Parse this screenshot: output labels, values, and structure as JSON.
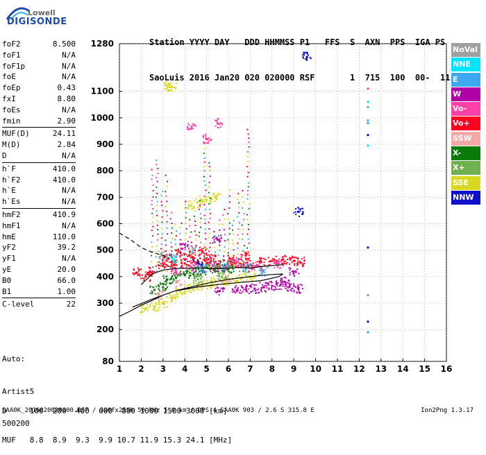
{
  "logo": {
    "top": "Lowell",
    "main": "DIGISONDE"
  },
  "header": {
    "line1": "Station YYYY DAY   DDD HHMMSS P1   FFS  S  AXN  PPS  IGA PS",
    "line2": "SaoLuis 2016 Jan20 020 020000 RSF       1  715  100  00-  11"
  },
  "params": [
    [
      {
        "label": "foF2",
        "value": "8.500"
      },
      {
        "label": "foF1",
        "value": "N/A"
      },
      {
        "label": "foF1p",
        "value": "N/A"
      },
      {
        "label": "foE",
        "value": "N/A"
      },
      {
        "label": "foEp",
        "value": "0.43"
      },
      {
        "label": "fxI",
        "value": "8.80"
      },
      {
        "label": "foEs",
        "value": "N/A"
      },
      {
        "label": "fmin",
        "value": "2.90"
      }
    ],
    [
      {
        "label": "MUF(D)",
        "value": "24.11"
      },
      {
        "label": "M(D)",
        "value": "2.84"
      },
      {
        "label": "D",
        "value": "N/A"
      }
    ],
    [
      {
        "label": "h`F",
        "value": "410.0"
      },
      {
        "label": "h`F2",
        "value": "410.0"
      },
      {
        "label": "h`E",
        "value": "N/A"
      },
      {
        "label": "h`Es",
        "value": "N/A"
      }
    ],
    [
      {
        "label": "hmF2",
        "value": "410.9"
      },
      {
        "label": "hmF1",
        "value": "N/A"
      },
      {
        "label": "hmE",
        "value": "110.0"
      },
      {
        "label": "yF2",
        "value": "39.2"
      },
      {
        "label": "yF1",
        "value": "N/A"
      },
      {
        "label": "yE",
        "value": "20.0"
      },
      {
        "label": "B0",
        "value": "66.0"
      },
      {
        "label": "B1",
        "value": "1.00"
      }
    ],
    [
      {
        "label": "C-level",
        "value": "22"
      }
    ]
  ],
  "auto": {
    "line1": "Auto:",
    "line2": "Artist5",
    "line3": "500200"
  },
  "dmuf": {
    "d_line": "D     100  200  400  600  800 1000 1500 3000 [km]",
    "muf_line": "MUF   8.8  8.9  9.3  9.9 10.7 11.9 15.3 24.1 [MHz]"
  },
  "footer": {
    "left": "SAA0K_2016020020000.RSF / 300fx256h 50 kHz 5.0 km / DPS-4 SAA0K 903 / 2.6 S 315.8 E",
    "right": "Ion2Png 1.3.17"
  },
  "legend": [
    {
      "label": "NoVal",
      "color": "#a0a0a0"
    },
    {
      "label": "NNE",
      "color": "#00e5ff"
    },
    {
      "label": "E",
      "color": "#3ca8f0"
    },
    {
      "label": "W",
      "color": "#b000a8"
    },
    {
      "label": "Vo-",
      "color": "#ff3fa8"
    },
    {
      "label": "Vo+",
      "color": "#ff0020"
    },
    {
      "label": "SSW",
      "color": "#f5a8a8"
    },
    {
      "label": "X-",
      "color": "#0a7a0a"
    },
    {
      "label": "X+",
      "color": "#70b050"
    },
    {
      "label": "SSE",
      "color": "#d8d820"
    },
    {
      "label": "NNW",
      "color": "#1010c8"
    }
  ],
  "chart_data": {
    "type": "scatter",
    "xlabel": "",
    "ylabel": "",
    "xlim": [
      1,
      16
    ],
    "ylim": [
      80,
      1280
    ],
    "x_ticks": [
      1,
      2,
      3,
      4,
      5,
      6,
      7,
      8,
      9,
      10,
      11,
      12,
      13,
      14,
      15,
      16
    ],
    "y_ticks": [
      80,
      200,
      300,
      400,
      500,
      600,
      700,
      800,
      900,
      1000,
      1100,
      1280
    ],
    "grid": true,
    "series": [
      {
        "name": "Vo+",
        "color": "#ff0020",
        "points": [
          [
            1.8,
            415
          ],
          [
            2.4,
            420
          ],
          [
            3.0,
            440
          ],
          [
            3.5,
            445
          ],
          [
            4.0,
            450
          ],
          [
            4.5,
            455
          ],
          [
            5.0,
            450
          ],
          [
            5.5,
            445
          ],
          [
            6.0,
            445
          ],
          [
            6.5,
            450
          ],
          [
            7.0,
            445
          ],
          [
            7.5,
            455
          ],
          [
            8.0,
            460
          ],
          [
            8.5,
            465
          ],
          [
            9.0,
            460
          ],
          [
            9.3,
            455
          ],
          [
            2.2,
            400
          ],
          [
            3.2,
            470
          ],
          [
            4.2,
            480
          ],
          [
            5.2,
            470
          ],
          [
            6.2,
            465
          ],
          [
            6.8,
            480
          ],
          [
            3.8,
            490
          ],
          [
            4.8,
            495
          ]
        ]
      },
      {
        "name": "SSE",
        "color": "#d8d820",
        "points": [
          [
            2.2,
            280
          ],
          [
            2.6,
            285
          ],
          [
            3.0,
            300
          ],
          [
            3.4,
            320
          ],
          [
            3.8,
            340
          ],
          [
            4.2,
            355
          ],
          [
            4.6,
            365
          ],
          [
            5.0,
            370
          ],
          [
            5.4,
            380
          ],
          [
            5.8,
            385
          ],
          [
            6.2,
            390
          ],
          [
            6.6,
            395
          ],
          [
            7.0,
            400
          ],
          [
            4.2,
            670
          ],
          [
            4.6,
            680
          ],
          [
            5.0,
            690
          ],
          [
            5.4,
            700
          ],
          [
            3.2,
            1120
          ],
          [
            3.4,
            1118
          ]
        ]
      },
      {
        "name": "W",
        "color": "#b000a8",
        "points": [
          [
            7.2,
            355
          ],
          [
            7.6,
            360
          ],
          [
            8.0,
            365
          ],
          [
            8.4,
            370
          ],
          [
            8.8,
            362
          ],
          [
            9.2,
            355
          ],
          [
            6.4,
            350
          ],
          [
            6.8,
            352
          ],
          [
            5.6,
            345
          ],
          [
            9.0,
            420
          ],
          [
            8.6,
            380
          ],
          [
            5.5,
            540
          ],
          [
            4.0,
            520
          ]
        ]
      },
      {
        "name": "X-",
        "color": "#0a7a0a",
        "points": [
          [
            3.2,
            390
          ],
          [
            3.6,
            395
          ],
          [
            4.0,
            405
          ],
          [
            4.4,
            412
          ],
          [
            4.8,
            420
          ],
          [
            5.2,
            430
          ],
          [
            5.6,
            435
          ],
          [
            6.0,
            430
          ],
          [
            2.6,
            350
          ],
          [
            3.0,
            360
          ]
        ]
      },
      {
        "name": "NNW",
        "color": "#1010c8",
        "points": [
          [
            9.6,
            1230
          ],
          [
            12.4,
            935
          ],
          [
            12.4,
            510
          ],
          [
            12.4,
            230
          ],
          [
            9.2,
            645
          ],
          [
            4.6,
            450
          ]
        ]
      },
      {
        "name": "E",
        "color": "#3ca8f0",
        "points": [
          [
            12.4,
            1040
          ],
          [
            12.4,
            990
          ],
          [
            12.4,
            980
          ],
          [
            12.4,
            190
          ],
          [
            4.8,
            430
          ],
          [
            5.8,
            440
          ],
          [
            6.8,
            430
          ],
          [
            7.6,
            420
          ]
        ]
      },
      {
        "name": "NNE",
        "color": "#00e5ff",
        "points": [
          [
            12.4,
            1060
          ],
          [
            12.4,
            895
          ],
          [
            3.4,
            470
          ]
        ]
      },
      {
        "name": "Vo-",
        "color": "#ff3fa8",
        "points": [
          [
            12.4,
            1110
          ],
          [
            3.6,
            420
          ],
          [
            4.3,
            435
          ],
          [
            5.3,
            440
          ],
          [
            6.3,
            455
          ],
          [
            7.3,
            440
          ],
          [
            8.3,
            450
          ],
          [
            4.3,
            960
          ],
          [
            5.0,
            920
          ],
          [
            5.5,
            980
          ]
        ]
      },
      {
        "name": "SSW",
        "color": "#f5a8a8",
        "points": [
          [
            2.8,
            330
          ],
          [
            3.8,
            370
          ],
          [
            5.9,
            395
          ]
        ]
      },
      {
        "name": "X+",
        "color": "#70b050",
        "points": [
          [
            4.6,
            390
          ],
          [
            5.7,
            400
          ],
          [
            12.4,
            330
          ]
        ]
      },
      {
        "name": "NoVal",
        "color": "#a0a0a0",
        "points": [
          [
            3.0,
            480
          ],
          [
            4.4,
            500
          ]
        ]
      }
    ],
    "profile_line": [
      [
        1.0,
        250
      ],
      [
        1.5,
        270
      ],
      [
        2.0,
        292
      ],
      [
        2.5,
        310
      ],
      [
        3.0,
        330
      ],
      [
        3.5,
        345
      ],
      [
        4.0,
        355
      ],
      [
        5.0,
        375
      ],
      [
        6.0,
        390
      ],
      [
        7.0,
        400
      ],
      [
        7.5,
        405
      ],
      [
        8.0,
        408
      ],
      [
        8.5,
        410
      ],
      [
        8.3,
        400
      ],
      [
        7.5,
        385
      ],
      [
        6.5,
        378
      ],
      [
        5.5,
        370
      ],
      [
        4.5,
        360
      ],
      [
        3.5,
        345
      ],
      [
        2.5,
        315
      ],
      [
        1.6,
        285
      ]
    ],
    "trace_line": [
      [
        2.0,
        370
      ],
      [
        2.5,
        410
      ],
      [
        3.0,
        425
      ],
      [
        3.5,
        430
      ],
      [
        4.0,
        432
      ],
      [
        4.5,
        433
      ],
      [
        5.0,
        432
      ],
      [
        5.5,
        430
      ],
      [
        6.0,
        432
      ],
      [
        6.5,
        435
      ],
      [
        7.0,
        433
      ],
      [
        7.5,
        438
      ],
      [
        8.0,
        442
      ],
      [
        8.5,
        445
      ]
    ],
    "dashed_line": [
      [
        1.0,
        565
      ],
      [
        1.5,
        540
      ],
      [
        2.0,
        510
      ],
      [
        2.5,
        492
      ],
      [
        3.0,
        480
      ],
      [
        3.3,
        470
      ]
    ]
  }
}
